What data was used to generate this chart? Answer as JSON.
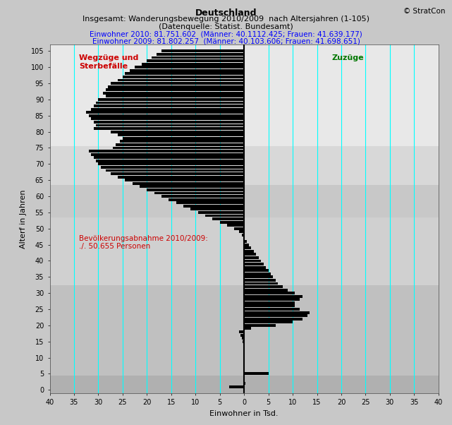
{
  "title_line1": "Deutschland",
  "title_line2": "Insgesamt: Wanderungsbewegung 2010/2009  nach Altersjahren (1-105)",
  "title_line3": "(Datenquelle: Statist. Bundesamt)",
  "title_line4": "Einwohner 2010: 81.751.602  (Männer: 40.1112.425; Frauen: 41.639.177)",
  "title_line5": "Einwohner 2009: 81.802.257  (Männer: 40.103.606; Frauen: 41.698.651)",
  "copyright": "© StratCon",
  "xlabel": "Einwohner in Tsd.",
  "ylabel": "Alterf in Jahren",
  "xlim": [
    -40,
    40
  ],
  "ylim": [
    -1,
    107
  ],
  "xticks": [
    -40,
    -35,
    -30,
    -25,
    -20,
    -15,
    -10,
    -5,
    0,
    5,
    10,
    15,
    20,
    25,
    30,
    35,
    40
  ],
  "xtick_labels": [
    "40",
    "35",
    "30",
    "25",
    "20",
    "15",
    "10",
    "5",
    "0",
    "5",
    "10",
    "15",
    "20",
    "25",
    "30",
    "35",
    "40"
  ],
  "yticks": [
    0,
    5,
    10,
    15,
    20,
    25,
    30,
    35,
    40,
    45,
    50,
    55,
    60,
    65,
    70,
    75,
    80,
    85,
    90,
    95,
    100,
    105
  ],
  "label_wegzuege": "Wegzüge und\nSterbefälle",
  "label_zugzuege": "Zuzüge",
  "label_abnahme": "Bevölkerungsabnahme 2010/2009:\n./. 50.655 Personen",
  "cyan_lines_x": [
    -35,
    -30,
    -25,
    -20,
    -15,
    -10,
    -5,
    5,
    10,
    15,
    20,
    25,
    30,
    35
  ],
  "bg_bands": [
    {
      "ymin": -1,
      "ymax": 4.5,
      "color": "#b0b0b0"
    },
    {
      "ymin": 4.5,
      "ymax": 32.5,
      "color": "#c0c0c0"
    },
    {
      "ymin": 32.5,
      "ymax": 53.5,
      "color": "#d0d0d0"
    },
    {
      "ymin": 53.5,
      "ymax": 63.5,
      "color": "#c8c8c8"
    },
    {
      "ymin": 63.5,
      "ymax": 75.5,
      "color": "#d8d8d8"
    },
    {
      "ymin": 75.5,
      "ymax": 107,
      "color": "#e8e8e8"
    }
  ],
  "fig_bg": "#c8c8c8",
  "bar_color": "#000000",
  "text_red": "#cc0000",
  "text_green": "#007700",
  "ages": [
    1,
    2,
    3,
    4,
    5,
    6,
    7,
    8,
    9,
    10,
    11,
    12,
    13,
    14,
    15,
    16,
    17,
    18,
    19,
    20,
    21,
    22,
    23,
    24,
    25,
    26,
    27,
    28,
    29,
    30,
    31,
    32,
    33,
    34,
    35,
    36,
    37,
    38,
    39,
    40,
    41,
    42,
    43,
    44,
    45,
    46,
    47,
    48,
    49,
    50,
    51,
    52,
    53,
    54,
    55,
    56,
    57,
    58,
    59,
    60,
    61,
    62,
    63,
    64,
    65,
    66,
    67,
    68,
    69,
    70,
    71,
    72,
    73,
    74,
    75,
    76,
    77,
    78,
    79,
    80,
    81,
    82,
    83,
    84,
    85,
    86,
    87,
    88,
    89,
    90,
    91,
    92,
    93,
    94,
    95,
    96,
    97,
    98,
    99,
    100,
    101,
    102,
    103,
    104,
    105
  ],
  "values": [
    -3.0,
    0.2,
    0.1,
    0.05,
    5.0,
    0.1,
    0.1,
    0.05,
    0.05,
    0.0,
    -0.1,
    -0.1,
    -0.1,
    -0.2,
    -0.3,
    -0.5,
    -0.7,
    -1.0,
    1.5,
    6.5,
    10.0,
    12.0,
    13.0,
    13.5,
    11.5,
    10.5,
    10.5,
    11.5,
    12.0,
    10.5,
    9.0,
    8.0,
    7.0,
    6.5,
    6.0,
    5.5,
    5.0,
    4.5,
    4.0,
    3.5,
    3.0,
    2.5,
    2.0,
    1.5,
    1.0,
    0.5,
    0.0,
    -0.5,
    -1.0,
    -2.0,
    -3.5,
    -5.0,
    -6.5,
    -8.0,
    -9.5,
    -11.0,
    -12.5,
    -14.0,
    -15.5,
    -17.0,
    -18.5,
    -20.0,
    -21.5,
    -23.0,
    -24.5,
    -26.0,
    -27.5,
    -28.5,
    -29.5,
    -30.0,
    -30.5,
    -31.0,
    -31.5,
    -32.0,
    -27.0,
    -26.5,
    -25.5,
    -25.0,
    -26.0,
    -27.5,
    -31.0,
    -30.5,
    -31.0,
    -31.5,
    -32.0,
    -32.5,
    -31.5,
    -31.0,
    -30.5,
    -30.0,
    -28.5,
    -29.0,
    -28.5,
    -28.0,
    -27.5,
    -26.0,
    -25.0,
    -24.5,
    -23.5,
    -22.5,
    -21.0,
    -20.0,
    -19.0,
    -18.0,
    -17.0
  ],
  "wegzuege_x": -34,
  "wegzuege_y": 104,
  "zugzuege_x": 18,
  "zugzuege_y": 104,
  "abnahme_x": -34,
  "abnahme_y": 48
}
